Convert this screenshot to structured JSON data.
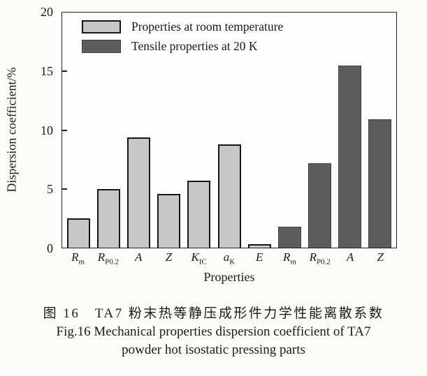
{
  "figure": {
    "caption_zh": "图 16　TA7 粉末热等静压成形件力学性能离散系数",
    "caption_en_line1": "Fig.16 Mechanical properties dispersion coefficient of TA7",
    "caption_en_line2": "powder hot isostatic pressing parts"
  },
  "chart_data": {
    "type": "bar",
    "title": "",
    "xlabel": "Properties",
    "ylabel": "Dispersion coefficient/%",
    "ylim": [
      0,
      20
    ],
    "yticks": [
      0,
      5,
      10,
      15,
      20
    ],
    "grid": false,
    "plot_border": "full-box",
    "legend_position": "top-left inside plot",
    "categories": [
      {
        "main": "R",
        "sub": "m"
      },
      {
        "main": "R",
        "sub": "P0.2"
      },
      {
        "main": "A",
        "sub": ""
      },
      {
        "main": "Z",
        "sub": ""
      },
      {
        "main": "K",
        "sub": "IC"
      },
      {
        "main": "a",
        "sub": "K"
      },
      {
        "main": "E",
        "sub": ""
      },
      {
        "main": "R",
        "sub": "m"
      },
      {
        "main": "R",
        "sub": "P0.2"
      },
      {
        "main": "A",
        "sub": ""
      },
      {
        "main": "Z",
        "sub": ""
      }
    ],
    "series": [
      {
        "name": "Properties at room temperature",
        "fill": "#c7c7c7",
        "border": "#161616",
        "values": [
          2.5,
          5.0,
          9.4,
          4.6,
          5.7,
          8.8,
          0.3,
          null,
          null,
          null,
          null
        ]
      },
      {
        "name": "Tensile properties at 20 K",
        "fill": "#5d5d5d",
        "border": "#3f3f3f",
        "values": [
          null,
          null,
          null,
          null,
          null,
          null,
          null,
          1.8,
          7.2,
          15.5,
          10.9
        ]
      }
    ]
  }
}
